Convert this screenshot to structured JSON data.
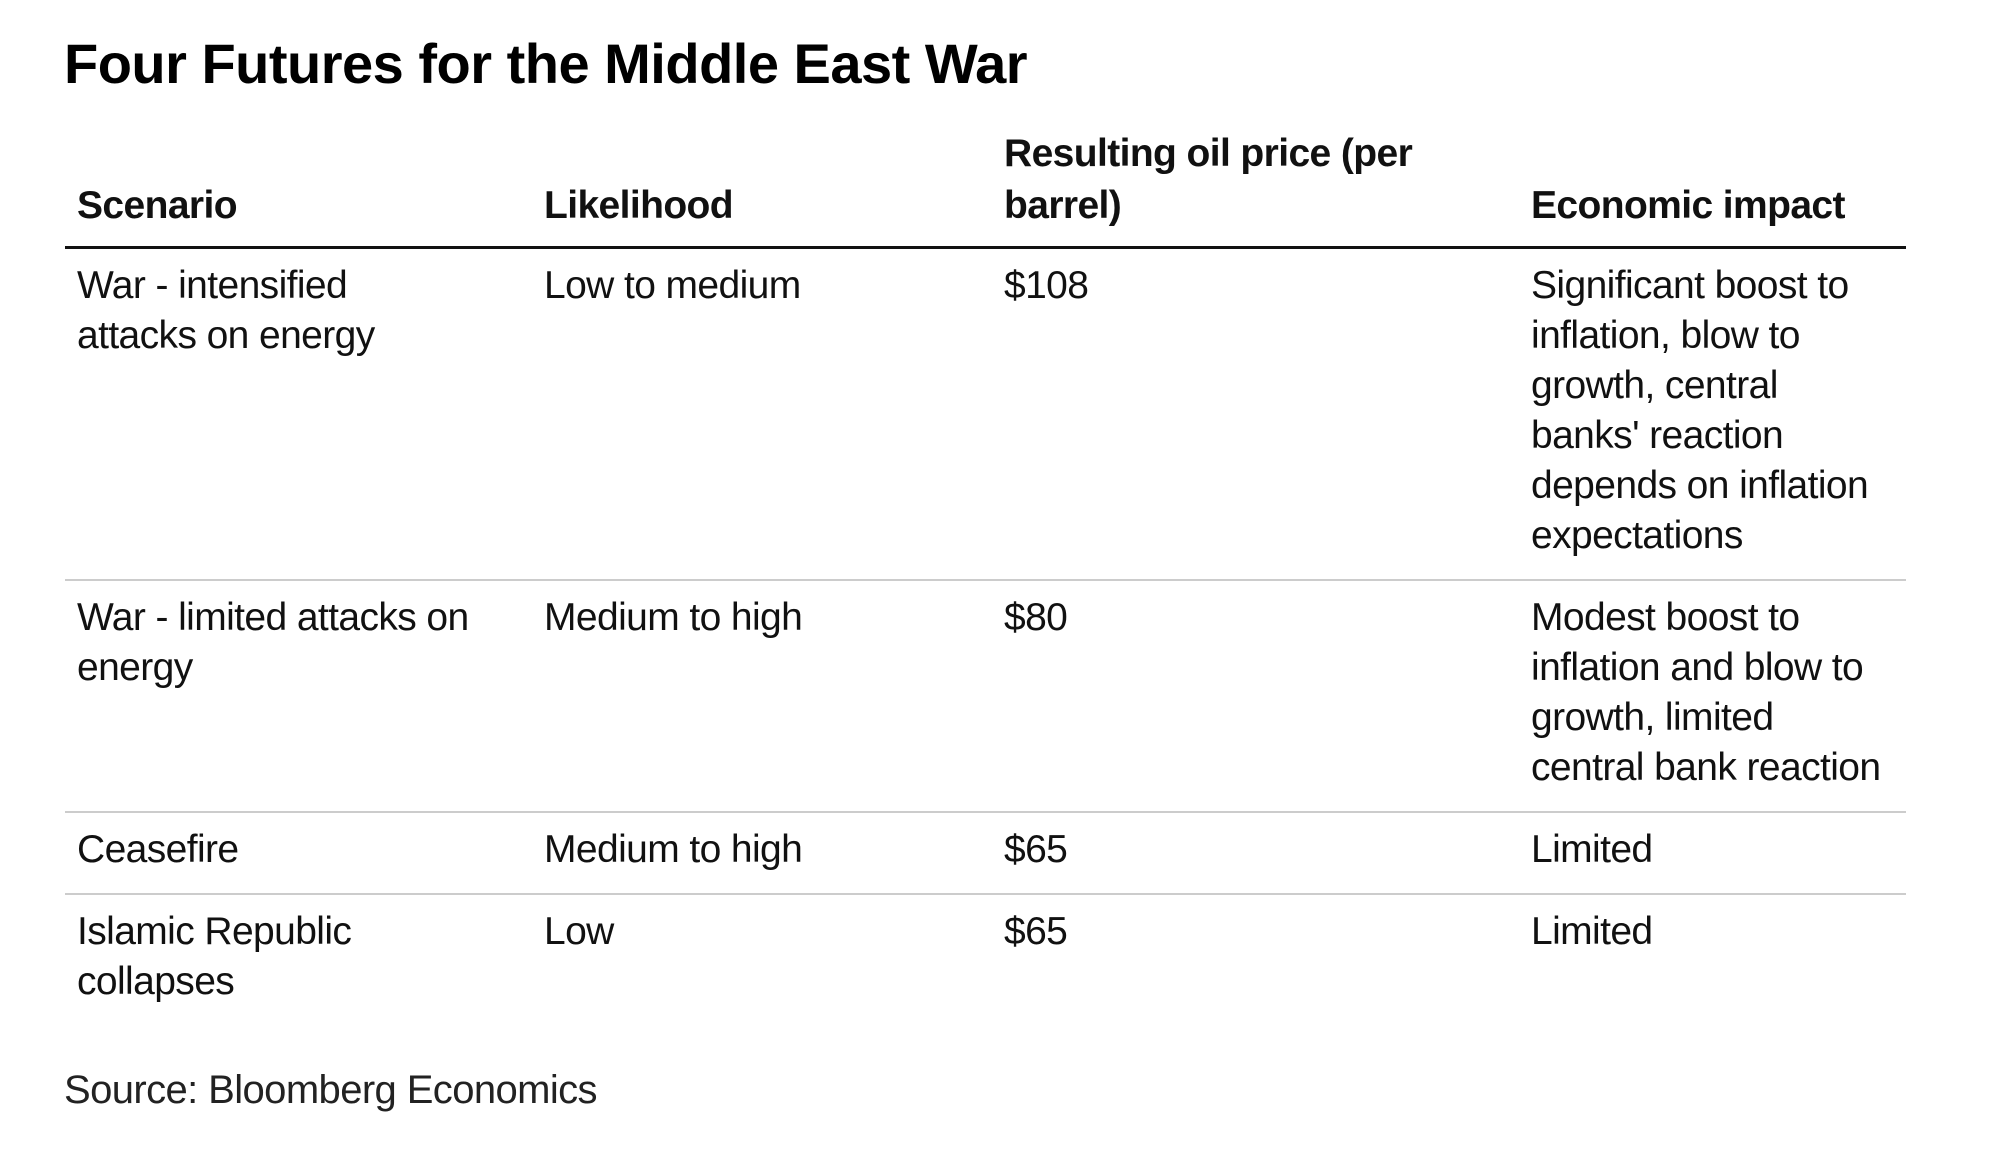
{
  "title": "Four Futures for the Middle East War",
  "table": {
    "headers": [
      "Scenario",
      "Likelihood",
      "Resulting oil price (per barrel)",
      "Economic impact"
    ],
    "rows": [
      [
        "War - intensified attacks on energy",
        "Low to medium",
        "$108",
        "Significant boost to inflation, blow to growth, central banks' reaction depends on inflation expectations"
      ],
      [
        "War - limited attacks on energy",
        "Medium to high",
        "$80",
        "Modest boost to inflation and blow to growth, limited central bank reaction"
      ],
      [
        "Ceasefire",
        "Medium to high",
        "$65",
        "Limited"
      ],
      [
        "Islamic Republic collapses",
        "Low",
        "$65",
        "Limited"
      ]
    ]
  },
  "source": "Source: Bloomberg Economics"
}
